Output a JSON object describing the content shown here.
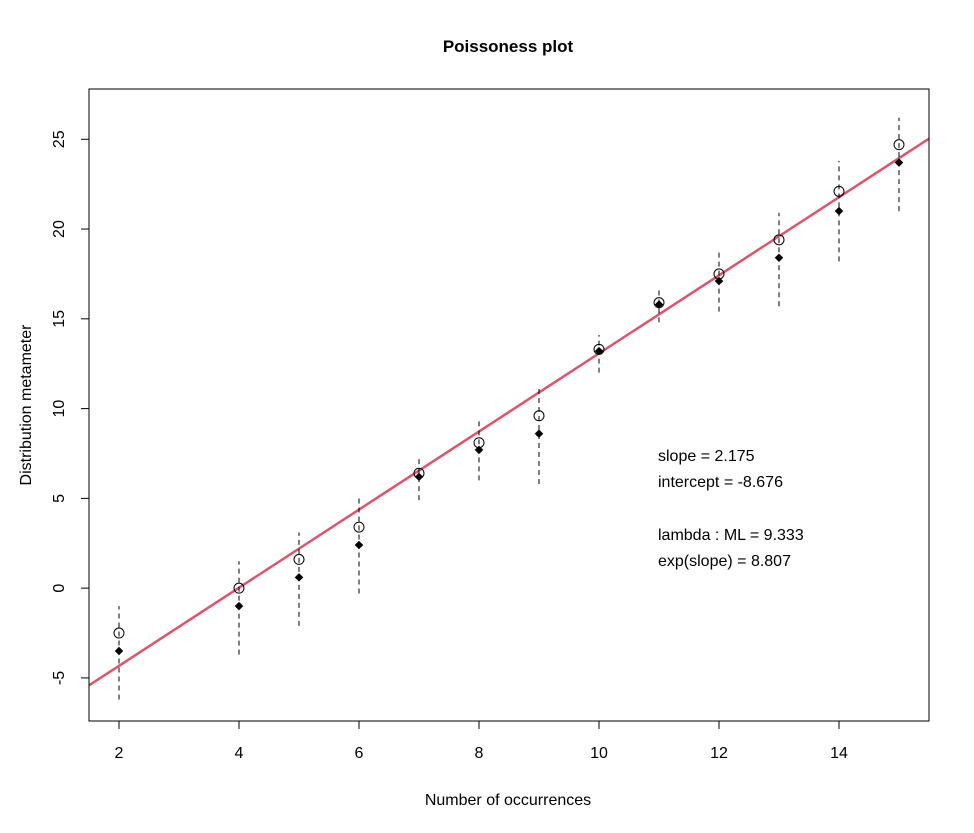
{
  "chart_data": {
    "type": "scatter",
    "title": "Poissoness plot",
    "xlabel": "Number of occurrences",
    "ylabel": "Distribution metameter",
    "xlim": [
      1.5,
      15.5
    ],
    "ylim": [
      -7.4,
      27.8
    ],
    "xticks": [
      2,
      4,
      6,
      8,
      10,
      12,
      14
    ],
    "yticks": [
      -5,
      0,
      5,
      10,
      15,
      20,
      25
    ],
    "grid": false,
    "legend": "none",
    "x": [
      2,
      4,
      5,
      6,
      7,
      8,
      9,
      10,
      11,
      12,
      13,
      14,
      15
    ],
    "series": [
      {
        "marker": "open-circle",
        "values": [
          -2.5,
          0.0,
          1.6,
          3.4,
          6.4,
          8.1,
          9.6,
          13.3,
          15.9,
          17.5,
          19.4,
          22.1,
          24.7
        ]
      },
      {
        "marker": "filled-diamond",
        "values": [
          -3.5,
          -1.0,
          0.6,
          2.4,
          6.2,
          7.7,
          8.6,
          13.2,
          15.8,
          17.1,
          18.4,
          21.0,
          23.7
        ],
        "ci_low": [
          -6.2,
          -3.7,
          -2.1,
          -0.3,
          4.9,
          6.0,
          5.8,
          12.0,
          14.8,
          15.4,
          15.7,
          18.2,
          21.0
        ],
        "ci_high": [
          -1.0,
          1.5,
          3.1,
          5.1,
          7.4,
          9.4,
          11.1,
          14.1,
          16.6,
          18.7,
          20.9,
          23.8,
          26.2
        ]
      }
    ],
    "fit_line": {
      "slope": 2.175,
      "intercept": -8.676,
      "color": "#DF536B"
    },
    "annotations": [
      "slope = 2.175",
      "intercept = -8.676",
      "lambda : ML = 9.333",
      "exp(slope) = 8.807"
    ],
    "colors": {
      "points": "#000000",
      "fit": "#DF536B"
    }
  }
}
